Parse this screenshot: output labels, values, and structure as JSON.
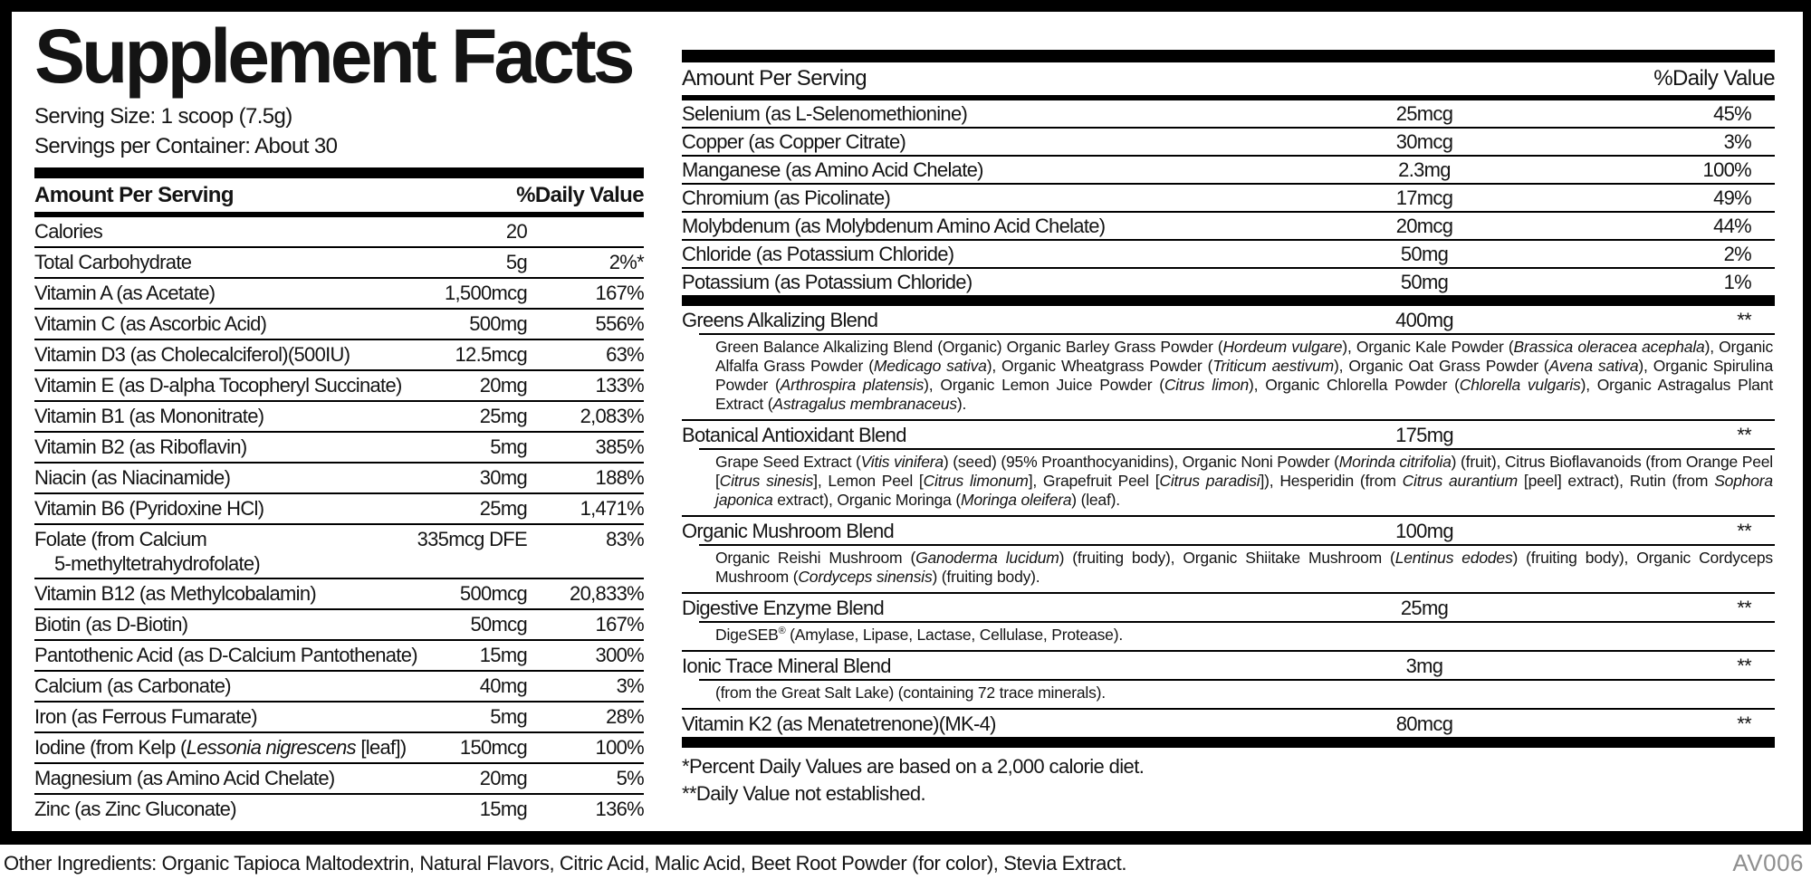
{
  "title": "Supplement Facts",
  "serving": {
    "size": "Serving Size: 1 scoop (7.5g)",
    "per_container": "Servings per Container: About 30"
  },
  "header": {
    "amount": "Amount Per Serving",
    "dv": "%Daily Value"
  },
  "left_table": {
    "rows": [
      {
        "name": [
          [
            "t",
            "Calories"
          ]
        ],
        "amount": "20",
        "dv": ""
      },
      {
        "name": [
          [
            "t",
            "Total Carbohydrate"
          ]
        ],
        "amount": "5g",
        "dv": "2%*"
      },
      {
        "name": [
          [
            "t",
            "Vitamin A (as Acetate)"
          ]
        ],
        "amount": "1,500mcg",
        "dv": "167%"
      },
      {
        "name": [
          [
            "t",
            "Vitamin C (as Ascorbic Acid)"
          ]
        ],
        "amount": "500mg",
        "dv": "556%"
      },
      {
        "name": [
          [
            "t",
            "Vitamin D3 (as Cholecalciferol)(500IU)"
          ]
        ],
        "amount": "12.5mcg",
        "dv": "63%"
      },
      {
        "name": [
          [
            "t",
            "Vitamin E (as D-alpha Tocopheryl Succinate)"
          ]
        ],
        "amount": "20mg",
        "dv": "133%"
      },
      {
        "name": [
          [
            "t",
            "Vitamin B1 (as Mononitrate)"
          ]
        ],
        "amount": "25mg",
        "dv": "2,083%"
      },
      {
        "name": [
          [
            "t",
            "Vitamin B2 (as Riboflavin)"
          ]
        ],
        "amount": "5mg",
        "dv": "385%"
      },
      {
        "name": [
          [
            "t",
            "Niacin (as Niacinamide)"
          ]
        ],
        "amount": "30mg",
        "dv": "188%"
      },
      {
        "name": [
          [
            "t",
            "Vitamin B6 (Pyridoxine HCl)"
          ]
        ],
        "amount": "25mg",
        "dv": "1,471%"
      },
      {
        "name": [
          [
            "t",
            "Folate (from Calcium"
          ]
        ],
        "name2": "5-methyltetrahydrofolate)",
        "amount": "335mcg DFE",
        "dv": "83%"
      },
      {
        "name": [
          [
            "t",
            "Vitamin B12 (as Methylcobalamin)"
          ]
        ],
        "amount": "500mcg",
        "dv": "20,833%"
      },
      {
        "name": [
          [
            "t",
            "Biotin (as D-Biotin)"
          ]
        ],
        "amount": "50mcg",
        "dv": "167%"
      },
      {
        "name": [
          [
            "t",
            "Pantothenic Acid (as D-Calcium Pantothenate)"
          ]
        ],
        "amount": "15mg",
        "dv": "300%"
      },
      {
        "name": [
          [
            "t",
            "Calcium (as Carbonate)"
          ]
        ],
        "amount": "40mg",
        "dv": "3%"
      },
      {
        "name": [
          [
            "t",
            "Iron (as Ferrous Fumarate)"
          ]
        ],
        "amount": "5mg",
        "dv": "28%"
      },
      {
        "name": [
          [
            "t",
            "Iodine (from Kelp ("
          ],
          [
            "i",
            "Lessonia nigrescens"
          ],
          [
            "t",
            " [leaf])"
          ]
        ],
        "amount": "150mcg",
        "dv": "100%"
      },
      {
        "name": [
          [
            "t",
            "Magnesium (as Amino Acid Chelate)"
          ]
        ],
        "amount": "20mg",
        "dv": "5%"
      },
      {
        "name": [
          [
            "t",
            "Zinc (as Zinc Gluconate)"
          ]
        ],
        "amount": "15mg",
        "dv": "136%"
      }
    ]
  },
  "right_table": {
    "rows": [
      {
        "name": "Selenium (as L-Selenomethionine)",
        "amount": "25mcg",
        "dv": "45%"
      },
      {
        "name": "Copper (as Copper Citrate)",
        "amount": "30mcg",
        "dv": "3%"
      },
      {
        "name": "Manganese (as Amino Acid Chelate)",
        "amount": "2.3mg",
        "dv": "100%"
      },
      {
        "name": "Chromium (as Picolinate)",
        "amount": "17mcg",
        "dv": "49%"
      },
      {
        "name": "Molybdenum (as Molybdenum Amino Acid Chelate)",
        "amount": "20mcg",
        "dv": "44%"
      },
      {
        "name": "Chloride (as Potassium Chloride)",
        "amount": "50mg",
        "dv": "2%"
      },
      {
        "name": "Potassium (as Potassium Chloride)",
        "amount": "50mg",
        "dv": "1%"
      }
    ],
    "blends": [
      {
        "name": "Greens Alkalizing Blend",
        "amount": "400mg",
        "dv": "**",
        "desc": [
          [
            "t",
            "Green Balance Alkalizing Blend (Organic) Organic Barley Grass Powder ("
          ],
          [
            "i",
            "Hordeum vulgare"
          ],
          [
            "t",
            "), Organic Kale Powder ("
          ],
          [
            "i",
            "Brassica oleracea acephala"
          ],
          [
            "t",
            "), Organic Alfalfa Grass Powder ("
          ],
          [
            "i",
            "Medicago sativa"
          ],
          [
            "t",
            "), Organic Wheatgrass Powder ("
          ],
          [
            "i",
            "Triticum aestivum"
          ],
          [
            "t",
            "), Organic Oat Grass Powder ("
          ],
          [
            "i",
            "Avena sativa"
          ],
          [
            "t",
            "), Organic Spirulina Powder ("
          ],
          [
            "i",
            "Arthrospira platensis"
          ],
          [
            "t",
            "), Organic Lemon Juice Powder ("
          ],
          [
            "i",
            "Citrus limon"
          ],
          [
            "t",
            "), Organic Chlorella Powder ("
          ],
          [
            "i",
            "Chlorella vulgaris"
          ],
          [
            "t",
            "), Organic Astragalus Plant Extract ("
          ],
          [
            "i",
            "Astragalus membranaceus"
          ],
          [
            "t",
            ")."
          ]
        ]
      },
      {
        "name": "Botanical Antioxidant Blend",
        "amount": "175mg",
        "dv": "**",
        "desc": [
          [
            "t",
            "Grape Seed Extract ("
          ],
          [
            "i",
            "Vitis vinifera"
          ],
          [
            "t",
            ") (seed) (95% Proanthocyanidins), Organic Noni Powder ("
          ],
          [
            "i",
            "Morinda citrifolia"
          ],
          [
            "t",
            ") (fruit), Citrus Bioflavanoids (from Orange Peel ["
          ],
          [
            "i",
            "Citrus sinesis"
          ],
          [
            "t",
            "], Lemon Peel ["
          ],
          [
            "i",
            "Citrus limonum"
          ],
          [
            "t",
            "], Grapefruit Peel ["
          ],
          [
            "i",
            "Citrus paradisi"
          ],
          [
            "t",
            "]), Hesperidin (from "
          ],
          [
            "i",
            "Citrus aurantium"
          ],
          [
            "t",
            " [peel] extract), Rutin (from "
          ],
          [
            "i",
            "Sophora japonica"
          ],
          [
            "t",
            " extract), Organic Moringa ("
          ],
          [
            "i",
            "Moringa oleifera"
          ],
          [
            "t",
            ") (leaf)."
          ]
        ]
      },
      {
        "name": "Organic Mushroom Blend",
        "amount": "100mg",
        "dv": "**",
        "desc": [
          [
            "t",
            "Organic Reishi Mushroom ("
          ],
          [
            "i",
            "Ganoderma lucidum"
          ],
          [
            "t",
            ") (fruiting body), Organic Shiitake Mushroom ("
          ],
          [
            "i",
            "Lentinus edodes"
          ],
          [
            "t",
            ") (fruiting body), Organic Cordyceps Mushroom ("
          ],
          [
            "i",
            "Cordyceps sinensis"
          ],
          [
            "t",
            ") (fruiting body)."
          ]
        ]
      },
      {
        "name": "Digestive Enzyme Blend",
        "amount": "25mg",
        "dv": "**",
        "desc": [
          [
            "t",
            "DigeSEB"
          ],
          [
            "s",
            "®"
          ],
          [
            "t",
            " (Amylase, Lipase, Lactase, Cellulase, Protease)."
          ]
        ]
      },
      {
        "name": "Ionic Trace Mineral Blend",
        "amount": "3mg",
        "dv": "**",
        "desc": [
          [
            "t",
            "(from the Great Salt Lake) (containing 72 trace minerals)."
          ]
        ]
      },
      {
        "name": "Vitamin K2 (as Menatetrenone)(MK-4)",
        "amount": "80mcg",
        "dv": "**",
        "desc": []
      }
    ]
  },
  "footnotes": [
    "*Percent Daily Values are based on a 2,000 calorie diet.",
    "**Daily Value not established."
  ],
  "other_ingredients": "Other Ingredients: Organic Tapioca Maltodextrin, Natural Flavors, Citric Acid, Malic Acid, Beet Root Powder (for color), Stevia Extract.",
  "code": "AV006",
  "colors": {
    "frame": "#000000",
    "text": "#141414",
    "code_gray": "#8f8f8f",
    "background": "#ffffff"
  }
}
